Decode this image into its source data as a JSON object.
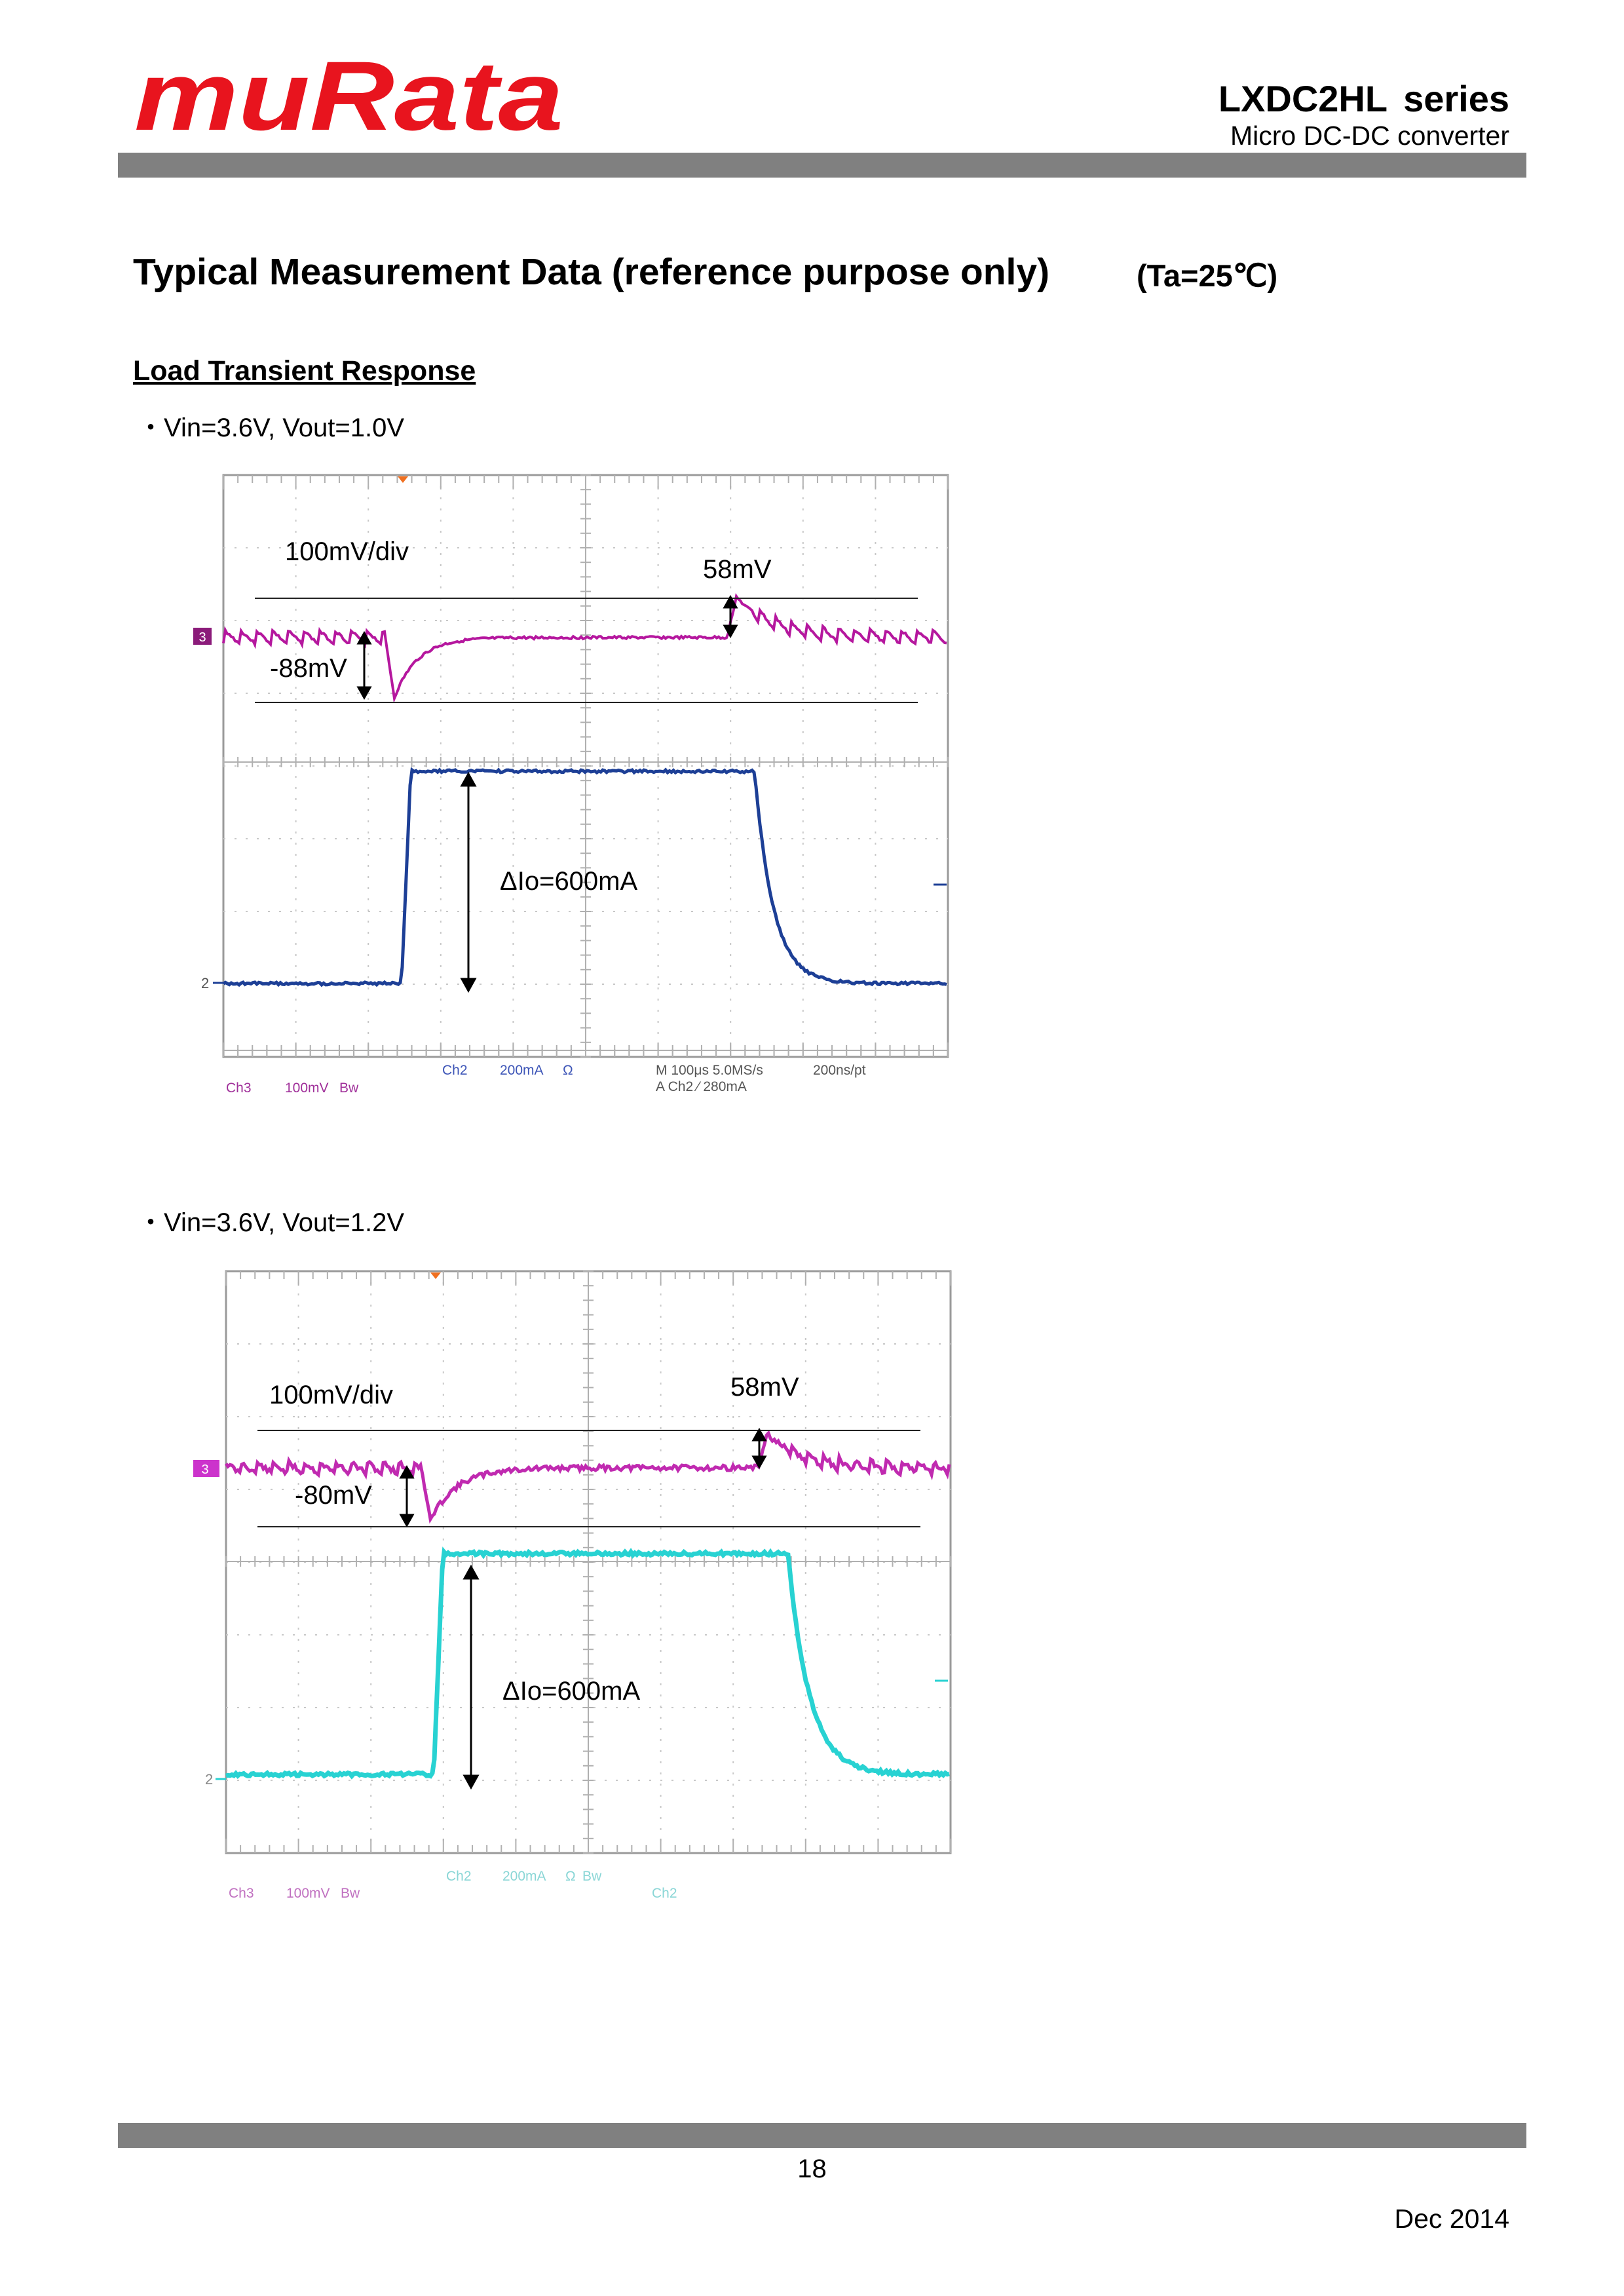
{
  "header": {
    "logo_text": "muRata",
    "series": [
      "LXDC2HL",
      "series"
    ],
    "subtitle": "Micro  DC-DC  converter"
  },
  "title": "Typical Measurement Data (reference purpose only)",
  "condition": "(Ta=25℃)",
  "section": "Load Transient Response",
  "colors": {
    "logo_red": "#e8141e",
    "bar_gray": "#808080",
    "vout_trace_magenta": "#b5179e",
    "io_trace_blue_1": "#1d3f96",
    "io_trace_cyan_2": "#28d2d2",
    "scope_readout_blue": "#3d55b7",
    "scope_grid_gray": "#bbbbbb"
  },
  "plots": [
    {
      "bullet": "・Vin=3.6V, Vout=1.0V",
      "scale_label": "100mV/div",
      "overshoot_label": "58mV",
      "undershoot_label": "-88mV",
      "delta_label": "ΔIo=600mA",
      "ch3_marker": "3",
      "ch2_marker": "2",
      "readout": {
        "ch3": "Ch3",
        "ch3_scale": "100mV",
        "ch3_bw": "Bw",
        "ch2": "Ch2",
        "ch2_scale": "200mA",
        "ohm": "Ω",
        "time": "M 100μs 5.0MS/s",
        "resolution": "200ns/pt",
        "trigger": "A  Ch2  ∕  280mA"
      }
    },
    {
      "bullet": "・Vin=3.6V, Vout=1.2V",
      "scale_label": "100mV/div",
      "overshoot_label": "58mV",
      "undershoot_label": "-80mV",
      "delta_label": "ΔIo=600mA",
      "ch3_marker": "3",
      "ch2_marker": "2",
      "readout": {
        "ch3": "Ch3",
        "ch3_scale": "100mV",
        "ch3_bw": "Bw",
        "ch2": "Ch2",
        "ch2_scale": "200mA",
        "ohm": "Ω",
        "bw": "Bw",
        "ch2_trigger": "Ch2"
      }
    }
  ],
  "footer": {
    "page": "18",
    "date": "Dec  2014"
  }
}
